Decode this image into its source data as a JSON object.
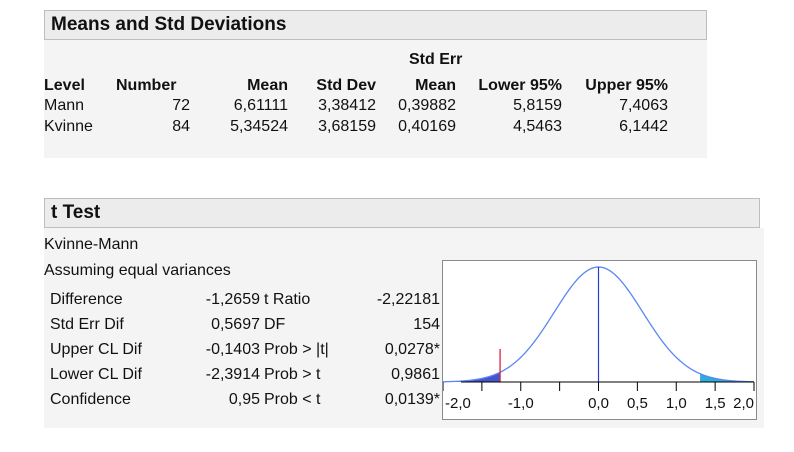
{
  "means_panel": {
    "title": "Means and Std Deviations",
    "header_top": {
      "std_err": "Std Err"
    },
    "columns": [
      "Level",
      "Number",
      "Mean",
      "Std Dev",
      "Mean",
      "Lower 95%",
      "Upper 95%"
    ],
    "rows": [
      [
        "Mann",
        "72",
        "6,61111",
        "3,38412",
        "0,39882",
        "5,8159",
        "7,4063"
      ],
      [
        "Kvinne",
        "84",
        "5,34524",
        "3,68159",
        "0,40169",
        "4,5463",
        "6,1442"
      ]
    ]
  },
  "ttest_panel": {
    "title": "t Test",
    "subtitle": "Kvinne-Mann",
    "assumption": "Assuming equal variances",
    "rows": [
      {
        "label": "Difference",
        "value": "-1,2659",
        "stat_label": "t Ratio",
        "stat_value": "-2,22181"
      },
      {
        "label": "Std Err Dif",
        "value": "0,5697",
        "stat_label": "DF",
        "stat_value": "154"
      },
      {
        "label": "Upper CL Dif",
        "value": "-0,1403",
        "stat_label": "Prob > |t|",
        "stat_value": "0,0278*"
      },
      {
        "label": "Lower CL Dif",
        "value": "-2,3914",
        "stat_label": "Prob > t",
        "stat_value": "0,9861"
      },
      {
        "label": "Confidence",
        "value": "0,95",
        "stat_label": "Prob < t",
        "stat_value": "0,0139*"
      }
    ]
  },
  "chart_data": {
    "type": "area",
    "xlim": [
      -2.0,
      2.0
    ],
    "tick_labels": [
      "-2,0",
      "-1,0",
      "0,0",
      "0,5",
      "1,0",
      "1,5",
      "2,0"
    ],
    "tick_values": [
      -2.0,
      -1.0,
      0.0,
      0.5,
      1.0,
      1.5,
      2.0
    ],
    "minor_ticks": [
      -1.5,
      -0.5
    ],
    "t_ratio": -2.22181,
    "observed_difference": -1.2659,
    "std_err": 0.5697,
    "colors": {
      "curve": "#5b87f2",
      "center_line": "#2b3cd6",
      "marker": "#e0203a",
      "left_tail": "#3340c8",
      "right_tail": "#16a4d8"
    }
  }
}
